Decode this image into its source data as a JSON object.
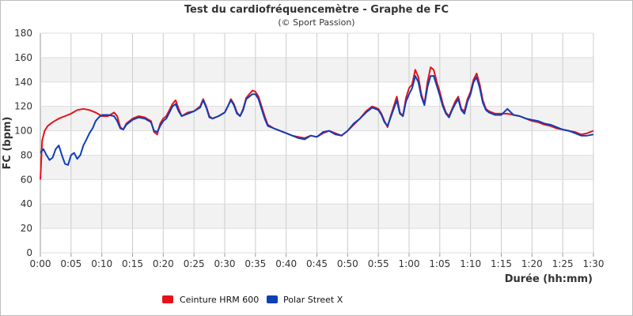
{
  "chart_data": {
    "type": "line",
    "title": "Test du cardiofréquencemètre - Graphe de FC",
    "subtitle": "(© Sport Passion)",
    "xlabel": "Durée (hh:mm)",
    "ylabel": "FC (bpm)",
    "xlim": [
      0,
      90
    ],
    "ylim": [
      0,
      180
    ],
    "x_unit": "minutes",
    "x_ticks": [
      {
        "v": 0,
        "label": "0:00"
      },
      {
        "v": 5,
        "label": "0:05"
      },
      {
        "v": 10,
        "label": "0:10"
      },
      {
        "v": 15,
        "label": "0:15"
      },
      {
        "v": 20,
        "label": "0:20"
      },
      {
        "v": 25,
        "label": "0:25"
      },
      {
        "v": 30,
        "label": "0:30"
      },
      {
        "v": 35,
        "label": "0:35"
      },
      {
        "v": 40,
        "label": "0:40"
      },
      {
        "v": 45,
        "label": "0:45"
      },
      {
        "v": 50,
        "label": "0:50"
      },
      {
        "v": 55,
        "label": "0:55"
      },
      {
        "v": 60,
        "label": "1:00"
      },
      {
        "v": 65,
        "label": "1:05"
      },
      {
        "v": 70,
        "label": "1:10"
      },
      {
        "v": 75,
        "label": "1:15"
      },
      {
        "v": 80,
        "label": "1:20"
      },
      {
        "v": 85,
        "label": "1:25"
      },
      {
        "v": 90,
        "label": "1:30"
      }
    ],
    "y_ticks": [
      0,
      20,
      40,
      60,
      80,
      100,
      120,
      140,
      160,
      180
    ],
    "grid": true,
    "legend_position": "bottom-left",
    "series": [
      {
        "name": "Ceinture HRM 600",
        "color": "#e8101b",
        "points": [
          [
            0,
            60
          ],
          [
            0.3,
            92
          ],
          [
            0.7,
            100
          ],
          [
            1.2,
            104
          ],
          [
            2,
            107
          ],
          [
            3,
            110
          ],
          [
            4,
            112
          ],
          [
            5,
            114
          ],
          [
            6,
            117
          ],
          [
            7,
            118
          ],
          [
            8,
            117
          ],
          [
            9,
            115
          ],
          [
            10,
            112
          ],
          [
            11,
            112
          ],
          [
            12,
            115
          ],
          [
            12.5,
            112
          ],
          [
            13,
            103
          ],
          [
            13.5,
            101
          ],
          [
            14,
            106
          ],
          [
            15,
            110
          ],
          [
            16,
            112
          ],
          [
            17,
            111
          ],
          [
            18,
            108
          ],
          [
            18.5,
            99
          ],
          [
            19,
            97
          ],
          [
            19.5,
            106
          ],
          [
            20,
            110
          ],
          [
            20.5,
            112
          ],
          [
            21,
            117
          ],
          [
            21.5,
            122
          ],
          [
            22,
            125
          ],
          [
            22.5,
            118
          ],
          [
            23,
            112
          ],
          [
            24,
            115
          ],
          [
            25,
            116
          ],
          [
            26,
            120
          ],
          [
            26.5,
            126
          ],
          [
            27,
            120
          ],
          [
            27.5,
            112
          ],
          [
            28,
            110
          ],
          [
            29,
            112
          ],
          [
            30,
            115
          ],
          [
            30.5,
            120
          ],
          [
            31,
            126
          ],
          [
            31.5,
            122
          ],
          [
            32,
            115
          ],
          [
            32.5,
            112
          ],
          [
            33,
            118
          ],
          [
            33.5,
            127
          ],
          [
            34,
            130
          ],
          [
            34.5,
            133
          ],
          [
            35,
            132
          ],
          [
            35.5,
            128
          ],
          [
            36,
            120
          ],
          [
            36.5,
            112
          ],
          [
            37,
            105
          ],
          [
            38,
            102
          ],
          [
            39,
            100
          ],
          [
            40,
            98
          ],
          [
            41,
            96
          ],
          [
            42,
            95
          ],
          [
            43,
            94
          ],
          [
            44,
            96
          ],
          [
            45,
            95
          ],
          [
            46,
            98
          ],
          [
            47,
            100
          ],
          [
            48,
            98
          ],
          [
            49,
            96
          ],
          [
            50,
            100
          ],
          [
            51,
            105
          ],
          [
            52,
            110
          ],
          [
            53,
            116
          ],
          [
            54,
            120
          ],
          [
            55,
            118
          ],
          [
            55.5,
            114
          ],
          [
            56,
            108
          ],
          [
            56.5,
            103
          ],
          [
            57,
            112
          ],
          [
            57.5,
            120
          ],
          [
            58,
            128
          ],
          [
            58.5,
            115
          ],
          [
            59,
            112
          ],
          [
            59.5,
            127
          ],
          [
            60,
            135
          ],
          [
            60.5,
            138
          ],
          [
            61,
            150
          ],
          [
            61.5,
            144
          ],
          [
            62,
            130
          ],
          [
            62.5,
            122
          ],
          [
            63,
            140
          ],
          [
            63.5,
            152
          ],
          [
            64,
            150
          ],
          [
            64.5,
            140
          ],
          [
            65,
            132
          ],
          [
            65.5,
            122
          ],
          [
            66,
            115
          ],
          [
            66.5,
            112
          ],
          [
            67,
            118
          ],
          [
            67.5,
            124
          ],
          [
            68,
            128
          ],
          [
            68.5,
            118
          ],
          [
            69,
            116
          ],
          [
            69.5,
            126
          ],
          [
            70,
            132
          ],
          [
            70.5,
            142
          ],
          [
            71,
            147
          ],
          [
            71.5,
            138
          ],
          [
            72,
            125
          ],
          [
            72.5,
            118
          ],
          [
            73,
            116
          ],
          [
            74,
            114
          ],
          [
            75,
            114
          ],
          [
            76,
            114
          ],
          [
            77,
            113
          ],
          [
            78,
            112
          ],
          [
            79,
            110
          ],
          [
            80,
            108
          ],
          [
            81,
            107
          ],
          [
            82,
            105
          ],
          [
            83,
            104
          ],
          [
            84,
            102
          ],
          [
            85,
            101
          ],
          [
            86,
            100
          ],
          [
            87,
            99
          ],
          [
            88,
            97
          ],
          [
            89,
            98
          ],
          [
            90,
            100
          ]
        ]
      },
      {
        "name": "Polar Street X",
        "color": "#0d3fb8",
        "points": [
          [
            0,
            82
          ],
          [
            0.5,
            85
          ],
          [
            1,
            80
          ],
          [
            1.5,
            76
          ],
          [
            2,
            78
          ],
          [
            2.5,
            85
          ],
          [
            3,
            88
          ],
          [
            3.5,
            80
          ],
          [
            4,
            73
          ],
          [
            4.5,
            72
          ],
          [
            5,
            80
          ],
          [
            5.5,
            82
          ],
          [
            6,
            77
          ],
          [
            6.5,
            80
          ],
          [
            7,
            88
          ],
          [
            7.5,
            93
          ],
          [
            8,
            98
          ],
          [
            8.5,
            102
          ],
          [
            9,
            108
          ],
          [
            9.5,
            111
          ],
          [
            10,
            113
          ],
          [
            11,
            113
          ],
          [
            12,
            112
          ],
          [
            12.5,
            108
          ],
          [
            13,
            102
          ],
          [
            13.5,
            101
          ],
          [
            14,
            105
          ],
          [
            15,
            109
          ],
          [
            16,
            111
          ],
          [
            17,
            110
          ],
          [
            18,
            107
          ],
          [
            18.5,
            100
          ],
          [
            19,
            99
          ],
          [
            19.5,
            104
          ],
          [
            20,
            108
          ],
          [
            20.5,
            110
          ],
          [
            21,
            115
          ],
          [
            21.5,
            120
          ],
          [
            22,
            122
          ],
          [
            22.5,
            116
          ],
          [
            23,
            112
          ],
          [
            24,
            114
          ],
          [
            25,
            116
          ],
          [
            26,
            119
          ],
          [
            26.5,
            125
          ],
          [
            27,
            119
          ],
          [
            27.5,
            111
          ],
          [
            28,
            110
          ],
          [
            29,
            112
          ],
          [
            30,
            115
          ],
          [
            30.5,
            120
          ],
          [
            31,
            125
          ],
          [
            31.5,
            121
          ],
          [
            32,
            114
          ],
          [
            32.5,
            112
          ],
          [
            33,
            117
          ],
          [
            33.5,
            126
          ],
          [
            34,
            128
          ],
          [
            34.5,
            130
          ],
          [
            35,
            130
          ],
          [
            35.5,
            126
          ],
          [
            36,
            118
          ],
          [
            36.5,
            110
          ],
          [
            37,
            104
          ],
          [
            38,
            102
          ],
          [
            39,
            100
          ],
          [
            40,
            98
          ],
          [
            41,
            96
          ],
          [
            42,
            94
          ],
          [
            43,
            93
          ],
          [
            44,
            96
          ],
          [
            45,
            95
          ],
          [
            46,
            99
          ],
          [
            47,
            100
          ],
          [
            48,
            97
          ],
          [
            49,
            96
          ],
          [
            50,
            100
          ],
          [
            51,
            106
          ],
          [
            52,
            110
          ],
          [
            53,
            115
          ],
          [
            54,
            119
          ],
          [
            55,
            117
          ],
          [
            55.5,
            113
          ],
          [
            56,
            107
          ],
          [
            56.5,
            104
          ],
          [
            57,
            111
          ],
          [
            57.5,
            118
          ],
          [
            58,
            125
          ],
          [
            58.5,
            114
          ],
          [
            59,
            112
          ],
          [
            59.5,
            124
          ],
          [
            60,
            130
          ],
          [
            60.5,
            135
          ],
          [
            61,
            145
          ],
          [
            61.5,
            140
          ],
          [
            62,
            128
          ],
          [
            62.5,
            121
          ],
          [
            63,
            136
          ],
          [
            63.5,
            145
          ],
          [
            64,
            145
          ],
          [
            64.5,
            137
          ],
          [
            65,
            129
          ],
          [
            65.5,
            120
          ],
          [
            66,
            114
          ],
          [
            66.5,
            111
          ],
          [
            67,
            117
          ],
          [
            67.5,
            122
          ],
          [
            68,
            126
          ],
          [
            68.5,
            117
          ],
          [
            69,
            114
          ],
          [
            69.5,
            124
          ],
          [
            70,
            130
          ],
          [
            70.5,
            140
          ],
          [
            71,
            144
          ],
          [
            71.5,
            135
          ],
          [
            72,
            123
          ],
          [
            72.5,
            117
          ],
          [
            73,
            115
          ],
          [
            74,
            113
          ],
          [
            75,
            113
          ],
          [
            76,
            118
          ],
          [
            77,
            113
          ],
          [
            78,
            112
          ],
          [
            79,
            110
          ],
          [
            80,
            109
          ],
          [
            81,
            108
          ],
          [
            82,
            106
          ],
          [
            83,
            105
          ],
          [
            84,
            103
          ],
          [
            85,
            101
          ],
          [
            86,
            100
          ],
          [
            87,
            98
          ],
          [
            88,
            96
          ],
          [
            89,
            96
          ],
          [
            90,
            97
          ]
        ]
      }
    ]
  }
}
